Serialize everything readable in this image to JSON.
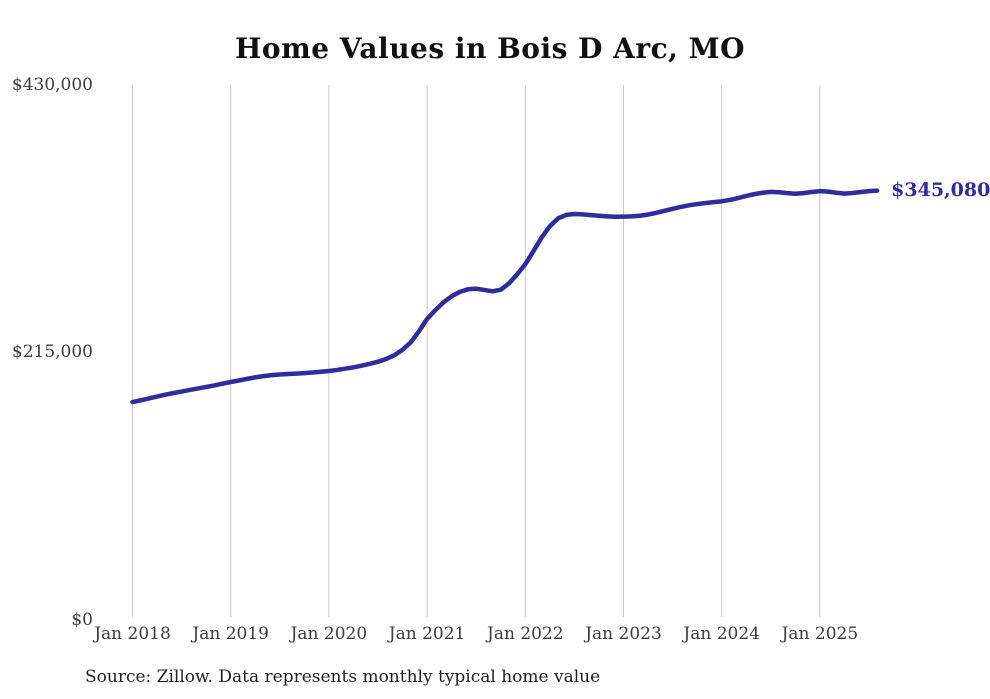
{
  "title": "Home Values in Bois D Arc, MO",
  "source_note": "Source: Zillow. Data represents monthly typical home value",
  "end_label": "$345,080",
  "colors": {
    "line": "#2f2d9e",
    "end_label": "#2f2d9e",
    "grid": "#c9c9c9",
    "axis_text": "#3d3d3d",
    "title_text": "#111111"
  },
  "chart_data": {
    "type": "line",
    "title": "Home Values in Bois D Arc, MO",
    "xlabel": "",
    "ylabel": "",
    "ylim": [
      0,
      430000
    ],
    "y_tick_labels": [
      "$0",
      "$215,000",
      "$430,000"
    ],
    "y_tick_values": [
      0,
      215000,
      430000
    ],
    "x_tick_labels": [
      "Jan 2018",
      "Jan 2019",
      "Jan 2020",
      "Jan 2021",
      "Jan 2022",
      "Jan 2023",
      "Jan 2024",
      "Jan 2025"
    ],
    "x_start": "2018-01",
    "x_end": "2025-08",
    "frequency": "monthly",
    "grid": "vertical-only",
    "legend": "none",
    "end_value": 345080,
    "series": [
      {
        "name": "Typical home value",
        "values": [
          175200,
          176600,
          178100,
          179600,
          181100,
          182400,
          183600,
          184900,
          186100,
          187300,
          188500,
          189900,
          191300,
          192500,
          193800,
          195000,
          196000,
          196800,
          197300,
          197700,
          198000,
          198400,
          198900,
          199500,
          200100,
          201000,
          202000,
          203100,
          204400,
          205900,
          207600,
          209800,
          212800,
          217200,
          223200,
          232000,
          242000,
          249000,
          255300,
          260200,
          263700,
          265800,
          266300,
          265300,
          264200,
          265500,
          270500,
          277800,
          286000,
          296500,
          307500,
          316500,
          322800,
          325600,
          326300,
          326000,
          325400,
          324900,
          324400,
          324100,
          324200,
          324400,
          324900,
          325900,
          327300,
          328900,
          330500,
          332000,
          333300,
          334300,
          335100,
          335900,
          336500,
          337600,
          339100,
          340800,
          342300,
          343400,
          344100,
          343800,
          343100,
          342600,
          343100,
          344000,
          344700,
          344300,
          343400,
          342700,
          343200,
          344000,
          344700,
          345080
        ]
      }
    ]
  }
}
